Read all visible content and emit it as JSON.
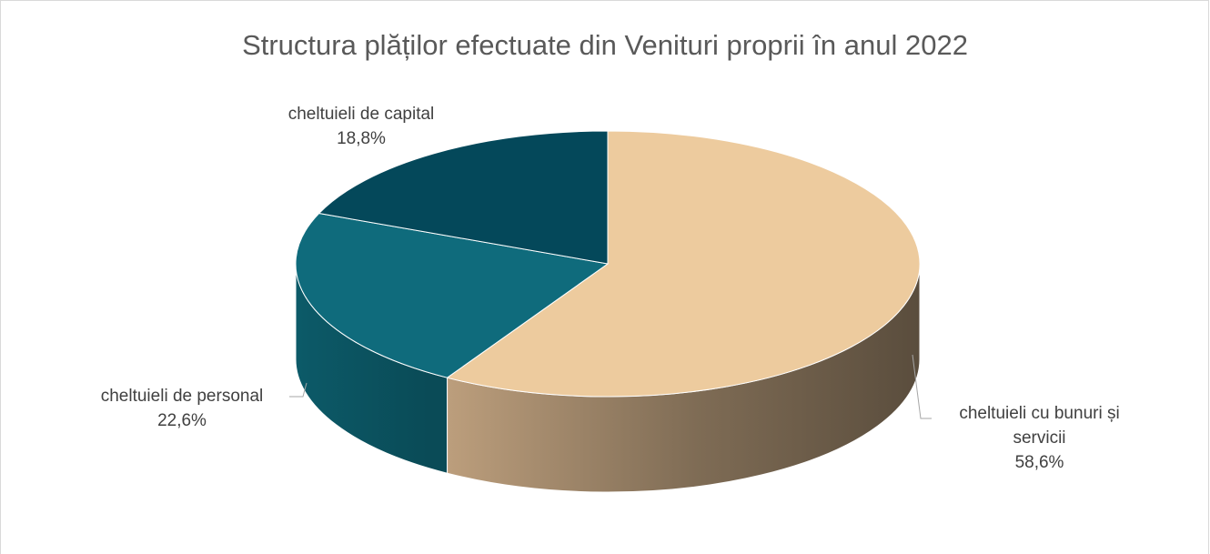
{
  "chart_data": {
    "type": "pie3d",
    "title": "Structura plăților efectuate din Venituri proprii în anul 2022",
    "categories": [
      "cheltuieli cu bunuri și servicii",
      "cheltuieli de personal",
      "cheltuieli de capital"
    ],
    "values": [
      58.6,
      22.6,
      18.8
    ],
    "value_labels": [
      "58,6%",
      "22,6%",
      "18,8%"
    ],
    "colors": [
      "#EDCB9E",
      "#0F6B7C",
      "#04485A"
    ]
  }
}
